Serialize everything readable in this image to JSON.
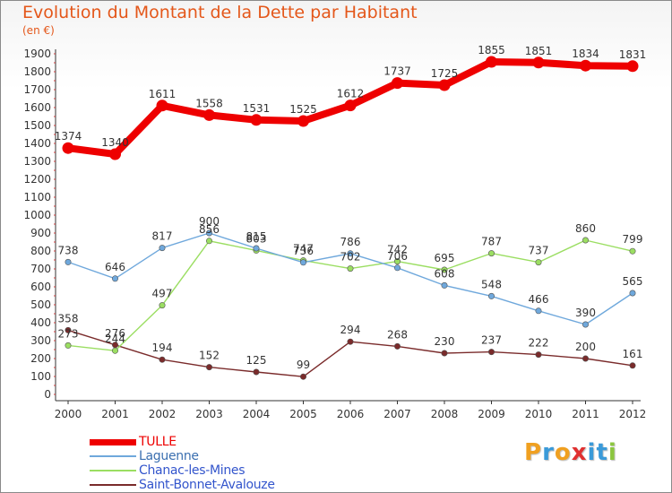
{
  "title": "Evolution du Montant de la Dette par Habitant",
  "subtitle": "(en €)",
  "logo": {
    "text": "Proxiti",
    "letters": [
      {
        "ch": "P",
        "color": "#f0a020"
      },
      {
        "ch": "r",
        "color": "#3a9ad9"
      },
      {
        "ch": "o",
        "color": "#f0a020"
      },
      {
        "ch": "x",
        "color": "#e03030"
      },
      {
        "ch": "i",
        "color": "#3a9ad9"
      },
      {
        "ch": "t",
        "color": "#3a9ad9"
      },
      {
        "ch": "i",
        "color": "#8cc63f"
      }
    ]
  },
  "chart_data": {
    "type": "line",
    "title": "Evolution du Montant de la Dette par Habitant",
    "ylabel": "(en €)",
    "xlabel": "",
    "x": [
      "2000",
      "2001",
      "2002",
      "2003",
      "2004",
      "2005",
      "2006",
      "2007",
      "2008",
      "2009",
      "2010",
      "2011",
      "2012"
    ],
    "ylim": [
      0,
      1900
    ],
    "yticks": [
      0,
      100,
      200,
      300,
      400,
      500,
      600,
      700,
      800,
      900,
      1000,
      1100,
      1200,
      1300,
      1400,
      1500,
      1600,
      1700,
      1800,
      1900
    ],
    "grid": false,
    "legend": "bottom-left",
    "series": [
      {
        "name": "TULLE",
        "color": "#ee0000",
        "values": [
          1374,
          1340,
          1611,
          1558,
          1531,
          1525,
          1612,
          1737,
          1725,
          1855,
          1851,
          1834,
          1831
        ]
      },
      {
        "name": "Laguenne",
        "color": "#6fa8dc",
        "values": [
          738,
          646,
          817,
          900,
          815,
          736,
          786,
          706,
          608,
          548,
          466,
          390,
          565
        ]
      },
      {
        "name": "Chanac-les-Mines",
        "color": "#9bde62",
        "values": [
          273,
          244,
          497,
          856,
          803,
          747,
          702,
          742,
          695,
          787,
          737,
          860,
          799
        ]
      },
      {
        "name": "Saint-Bonnet-Avalouze",
        "color": "#7a2b2b",
        "values": [
          358,
          276,
          194,
          152,
          125,
          99,
          294,
          268,
          230,
          237,
          222,
          200,
          161
        ]
      }
    ]
  }
}
